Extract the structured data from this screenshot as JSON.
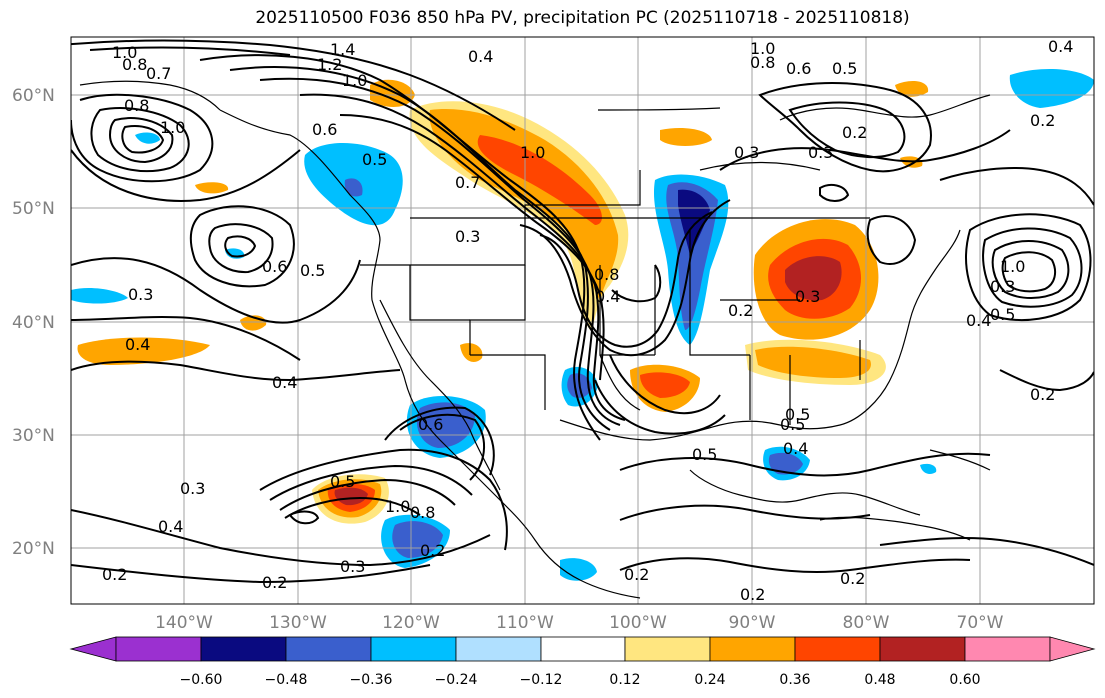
{
  "title": "2025110500 F036 850 hPa PV, precipitation PC (2025110718 - 2025110818)",
  "lat_labels": [
    "60°N",
    "50°N",
    "40°N",
    "30°N",
    "20°N"
  ],
  "lon_labels": [
    "140°W",
    "130°W",
    "120°W",
    "110°W",
    "100°W",
    "90°W",
    "80°W",
    "70°W"
  ],
  "colorbar": {
    "tick_labels": [
      "−0.60",
      "−0.48",
      "−0.36",
      "−0.24",
      "−0.12",
      "0.12",
      "0.24",
      "0.36",
      "0.48",
      "0.60"
    ],
    "colors": [
      "#9b30d0",
      "#0a0a80",
      "#3a5fcd",
      "#00bfff",
      "#b0e0ff",
      "#ffffff",
      "#ffe680",
      "#ffa500",
      "#ff4500",
      "#b22222",
      "#ff88b0",
      "#ff88b0"
    ],
    "under_color": "#9b30d0",
    "over_color": "#ff88b0"
  },
  "contour_labels": [
    {
      "text": "1.0"
    },
    {
      "text": "0.8"
    },
    {
      "text": "0.7"
    },
    {
      "text": "0.8"
    },
    {
      "text": "1.0"
    },
    {
      "text": "1.4"
    },
    {
      "text": "1.2"
    },
    {
      "text": "1.0"
    },
    {
      "text": "0.4"
    },
    {
      "text": "0.6"
    },
    {
      "text": "0.5"
    },
    {
      "text": "0.7"
    },
    {
      "text": "1.0"
    },
    {
      "text": "0.3"
    },
    {
      "text": "0.6"
    },
    {
      "text": "0.5"
    },
    {
      "text": "0.3"
    },
    {
      "text": "0.4"
    },
    {
      "text": "0.4"
    },
    {
      "text": "0.6"
    },
    {
      "text": "0.5"
    },
    {
      "text": "1.0"
    },
    {
      "text": "0.8"
    },
    {
      "text": "0.3"
    },
    {
      "text": "0.4"
    },
    {
      "text": "0.3"
    },
    {
      "text": "0.2"
    },
    {
      "text": "0.2"
    },
    {
      "text": "0.3"
    },
    {
      "text": "0.2"
    },
    {
      "text": "0.4"
    },
    {
      "text": "0.5"
    },
    {
      "text": "0.3"
    },
    {
      "text": "0.3"
    },
    {
      "text": "0.2"
    },
    {
      "text": "1.0"
    },
    {
      "text": "0.8"
    },
    {
      "text": "0.6"
    },
    {
      "text": "0.5"
    },
    {
      "text": "0.4"
    },
    {
      "text": "0.2"
    },
    {
      "text": "0.3"
    },
    {
      "text": "0.2"
    },
    {
      "text": "0.4"
    },
    {
      "text": "0.5"
    },
    {
      "text": "0.2"
    },
    {
      "text": "0.2"
    },
    {
      "text": "0.2"
    },
    {
      "text": "0.8"
    },
    {
      "text": "1.0"
    },
    {
      "text": "0.5"
    },
    {
      "text": "0.4"
    },
    {
      "text": "0.2"
    },
    {
      "text": "0.5"
    }
  ]
}
